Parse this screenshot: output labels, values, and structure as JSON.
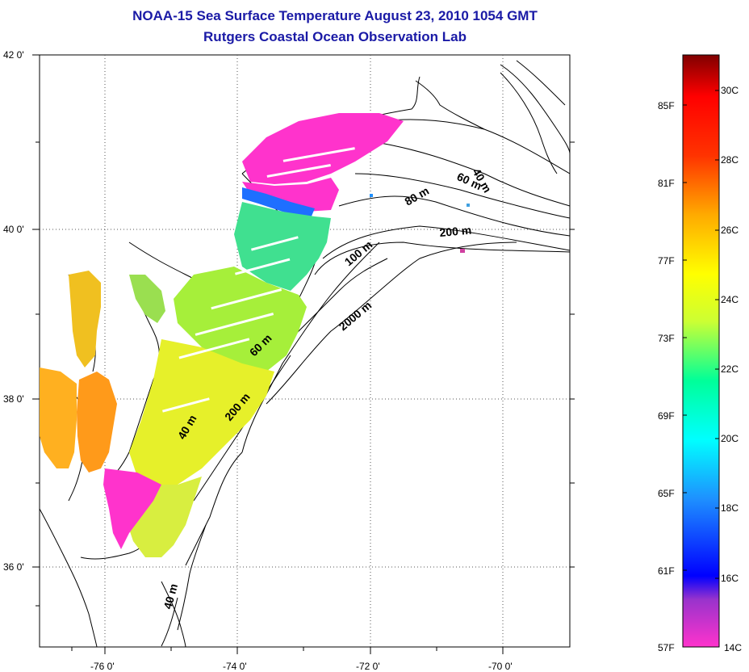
{
  "title": {
    "line1": "NOAA-15 Sea Surface Temperature August 23, 2010 1054 GMT",
    "line2": "Rutgers Coastal Ocean Observation Lab"
  },
  "axes": {
    "y_ticks": [
      "42 0'",
      "40 0'",
      "38 0'",
      "36 0'"
    ],
    "x_ticks": [
      "-76 0'",
      "-74 0'",
      "-72 0'",
      "-70 0'"
    ]
  },
  "contour_labels": [
    "40 m",
    "60 m",
    "80 m",
    "200 m",
    "100 m",
    "2000 m",
    "60 m",
    "200 m",
    "40 m",
    "40 m"
  ],
  "colorbar": {
    "fahrenheit": [
      "85F",
      "81F",
      "77F",
      "73F",
      "69F",
      "65F",
      "61F",
      "57F"
    ],
    "celsius": [
      "30C",
      "28C",
      "26C",
      "24C",
      "22C",
      "20C",
      "18C",
      "16C",
      "14C"
    ]
  },
  "colors": {
    "title": "#1a1aa6",
    "warm": "#ff8c1a",
    "mid": "#d8f020",
    "cool": "#40e090",
    "cold": "#ff33cc"
  }
}
